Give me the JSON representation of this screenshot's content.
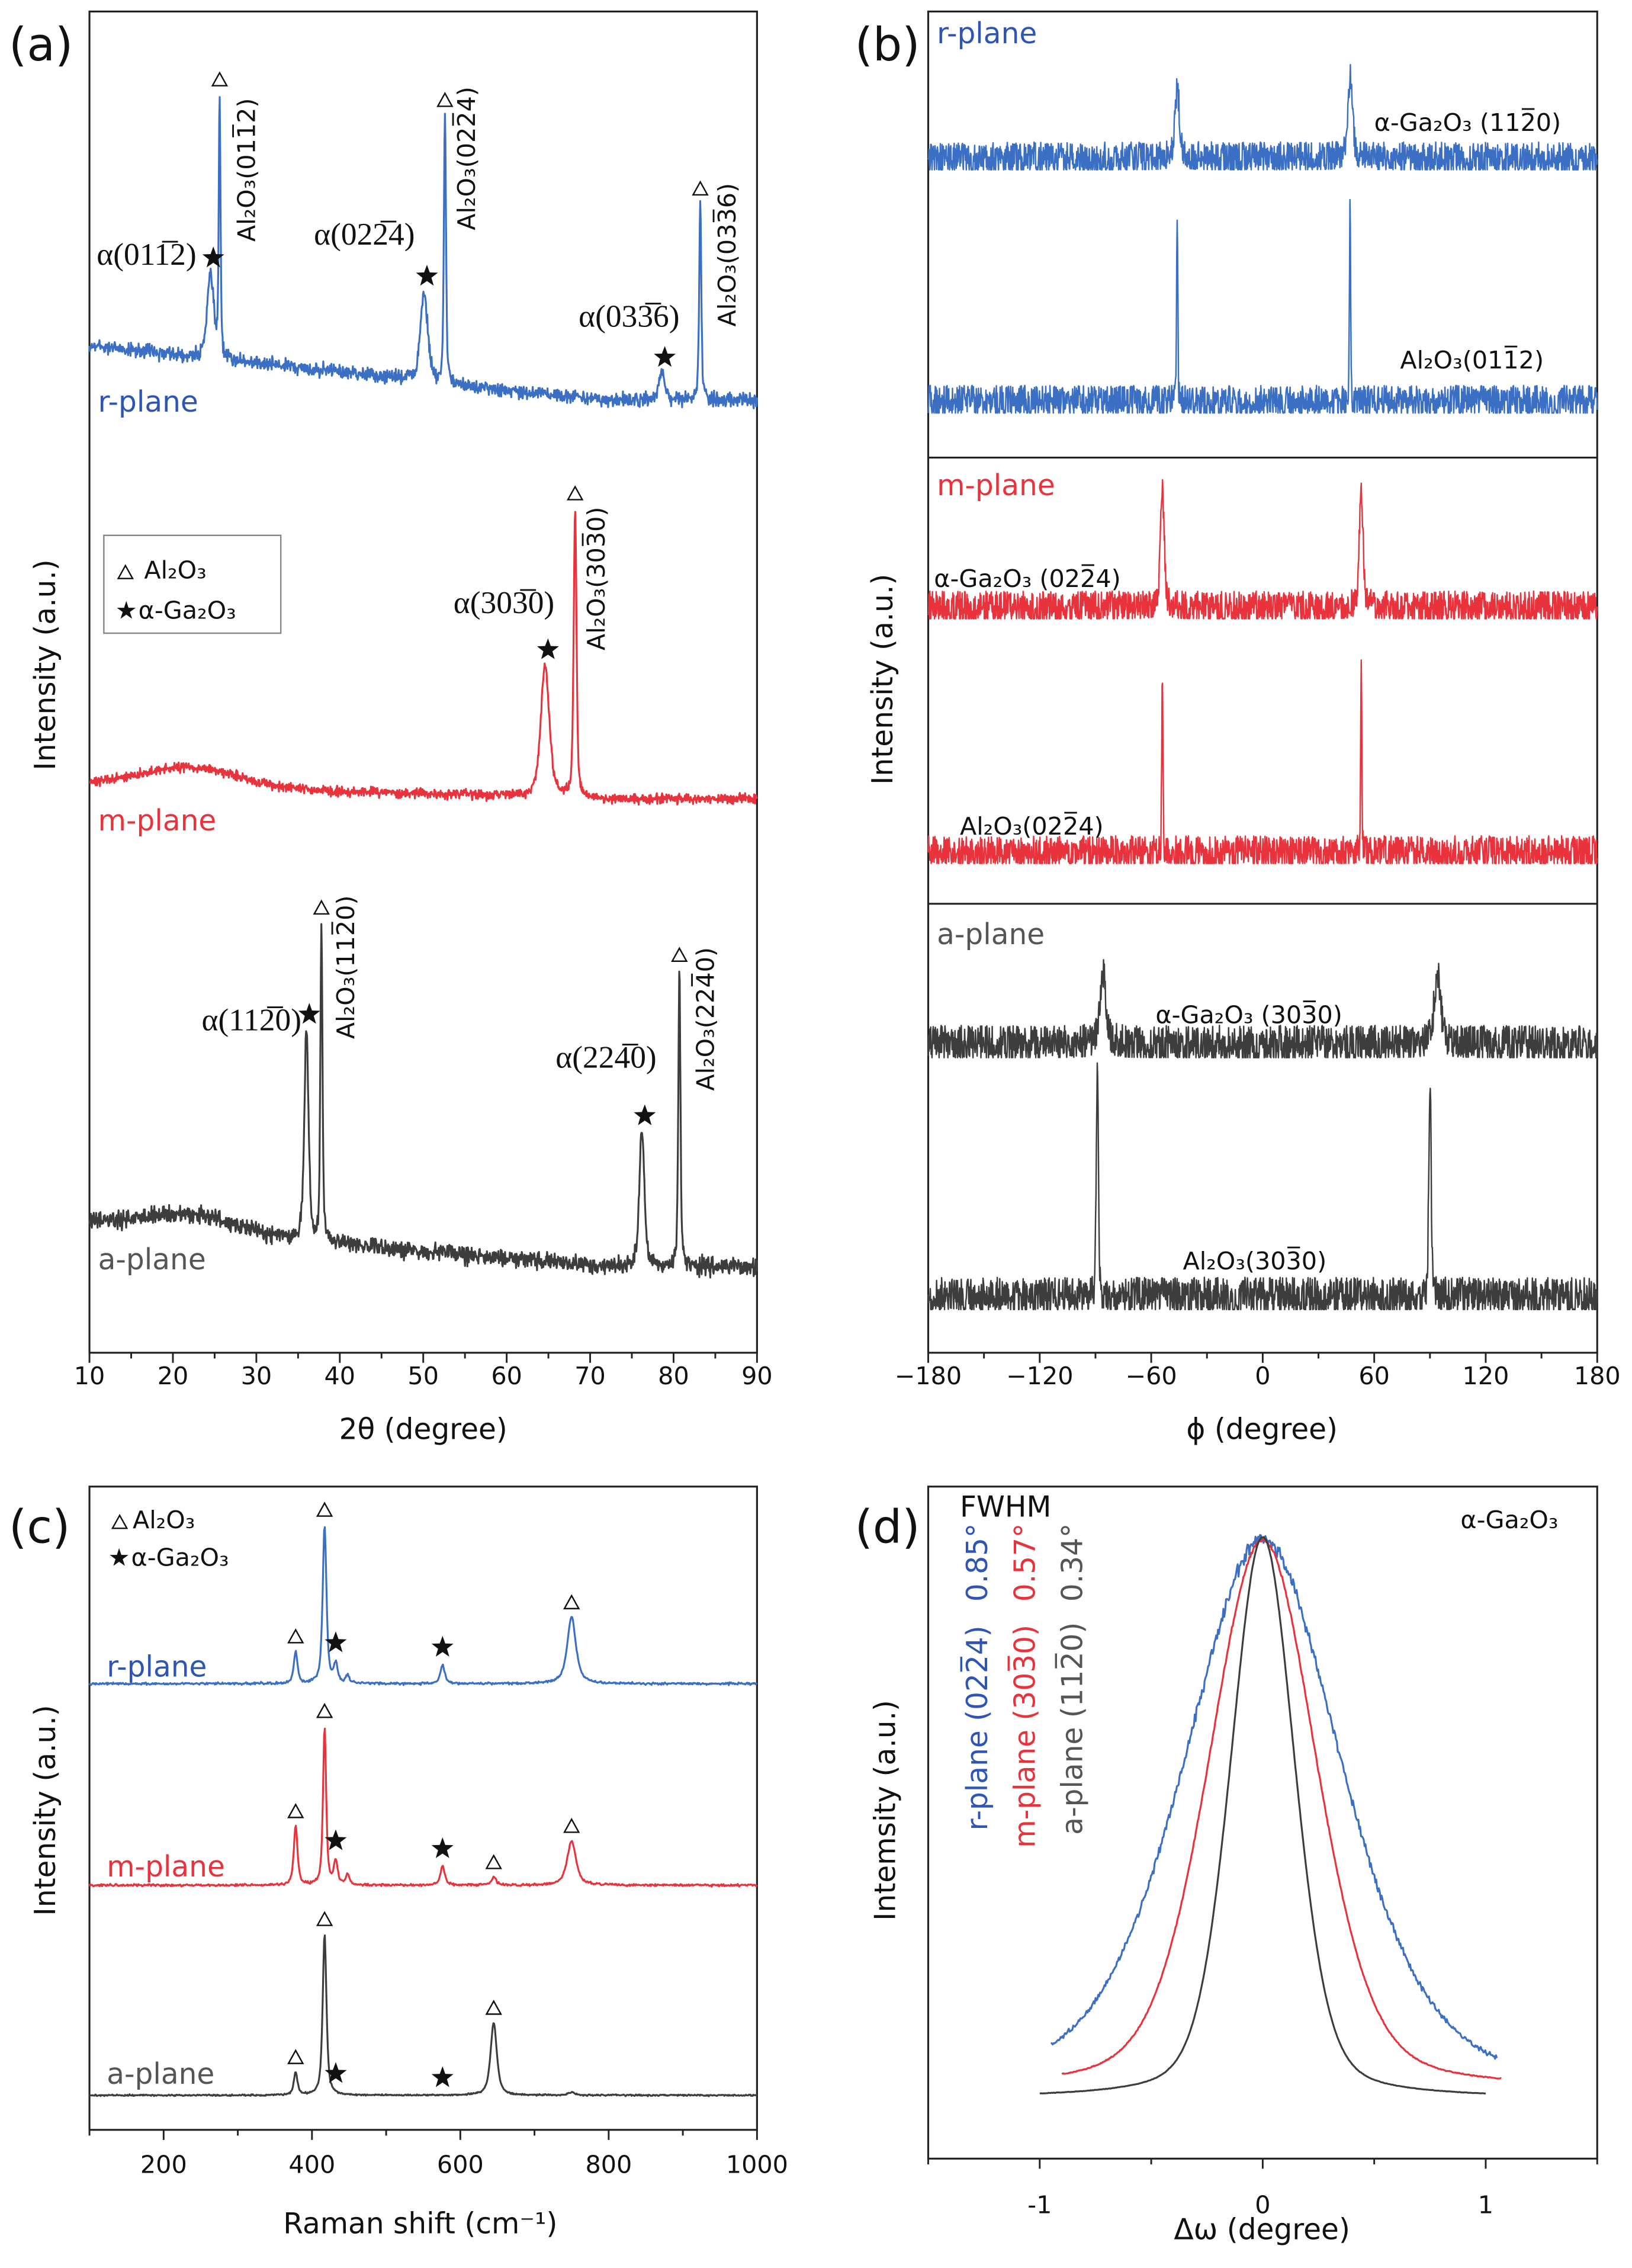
{
  "colors": {
    "r_plane": "#3a6fc4",
    "m_plane": "#e8323c",
    "a_plane": "#3d3d3d"
  },
  "panels": {
    "a": {
      "label": "(a)",
      "xlabel": "2θ (degree)",
      "ylabel": "Intensity (a.u.)",
      "legend": [
        "Al₂O₃",
        "α-Ga₂O₃"
      ],
      "series_labels": [
        "r-plane",
        "m-plane",
        "a-plane"
      ],
      "annotations": {
        "r_a1": "α(011̅2)",
        "r_s1": "Al₂O₃(011̅2)",
        "r_a2": "α(022̅4)",
        "r_s2": "Al₂O₃(022̅4)",
        "r_a3": "α(033̅6)",
        "r_s3": "Al₂O₃(033̅6)",
        "m_a1": "α(303̅0)",
        "m_s1": "Al₂O₃(303̅0)",
        "a_a1": "α(112̅0)",
        "a_s1": "Al₂O₃(112̅0)",
        "a_a2": "α(224̅0)",
        "a_s2": "Al₂O₃(224̅0)"
      }
    },
    "b": {
      "label": "(b)",
      "xlabel": "ϕ (degree)",
      "ylabel": "Intensity (a.u.)",
      "series_labels": [
        "r-plane",
        "m-plane",
        "a-plane"
      ],
      "annotations": {
        "r1": "α-Ga₂O₃ (112̅0)",
        "r2": "Al₂O₃(011̅2)",
        "m1": "α-Ga₂O₃ (022̅4)",
        "m2": "Al₂O₃(022̅4)",
        "a1": "α-Ga₂O₃ (303̅0)",
        "a2": "Al₂O₃(303̅0)"
      }
    },
    "c": {
      "label": "(c)",
      "xlabel": "Raman shift (cm⁻¹)",
      "ylabel": "Intensity (a.u.)",
      "legend": [
        "Al₂O₃",
        "α-Ga₂O₃"
      ],
      "series_labels": [
        "r-plane",
        "m-plane",
        "a-plane"
      ]
    },
    "d": {
      "label": "(d)",
      "xlabel": "Δω (degree)",
      "ylabel": "Intemsity (a.u.)",
      "legend_title": "FWHM",
      "material": "α-Ga₂O₃",
      "series_labels": [
        "r-plane (022̅4)",
        "m-plane (303̅0)",
        "a-plane (112̅0)"
      ],
      "fwhm_labels": [
        "0.85°",
        "0.57°",
        "0.34°"
      ]
    }
  },
  "chart_data": [
    {
      "type": "line",
      "title": "",
      "xlabel": "2θ (degree)",
      "ylabel": "Intensity (a.u.)",
      "xlim": [
        10,
        90
      ],
      "xticks": [
        10,
        20,
        30,
        40,
        50,
        60,
        70,
        80,
        90
      ],
      "yticks": [],
      "series": [
        {
          "name": "r-plane",
          "color": "#3a6fc4",
          "peaks": [
            {
              "x": 24.5,
              "h": 0.3,
              "w": 0.9,
              "phase": "Ga2O3"
            },
            {
              "x": 25.6,
              "h": 0.92,
              "w": 0.25,
              "phase": "Al2O3"
            },
            {
              "x": 50.1,
              "h": 0.32,
              "w": 1.0,
              "phase": "Ga2O3"
            },
            {
              "x": 52.6,
              "h": 0.95,
              "w": 0.3,
              "phase": "Al2O3"
            },
            {
              "x": 78.6,
              "h": 0.1,
              "w": 0.9,
              "phase": "Ga2O3"
            },
            {
              "x": 83.2,
              "h": 0.7,
              "w": 0.3,
              "phase": "Al2O3"
            }
          ]
        },
        {
          "name": "m-plane",
          "color": "#e8323c",
          "peaks": [
            {
              "x": 64.6,
              "h": 0.46,
              "w": 1.2,
              "phase": "Ga2O3"
            },
            {
              "x": 68.2,
              "h": 1.0,
              "w": 0.4,
              "phase": "Al2O3"
            }
          ]
        },
        {
          "name": "a-plane",
          "color": "#3d3d3d",
          "peaks": [
            {
              "x": 36.0,
              "h": 0.7,
              "w": 0.6,
              "phase": "Ga2O3"
            },
            {
              "x": 37.8,
              "h": 1.05,
              "w": 0.3,
              "phase": "Al2O3"
            },
            {
              "x": 76.2,
              "h": 0.45,
              "w": 0.7,
              "phase": "Ga2O3"
            },
            {
              "x": 80.7,
              "h": 0.98,
              "w": 0.3,
              "phase": "Al2O3"
            }
          ]
        }
      ],
      "legend_placement": "left-middle",
      "grid": false
    },
    {
      "type": "line",
      "title": "",
      "xlabel": "ϕ (degree)",
      "ylabel": "Intensity (a.u.)",
      "xlim": [
        -180,
        180
      ],
      "xticks": [
        -180,
        -120,
        -60,
        0,
        60,
        120,
        180
      ],
      "yticks": [],
      "series": [
        {
          "name": "r-plane α-Ga₂O₃ (112̅0)",
          "color": "#3a6fc4",
          "peaks": [
            {
              "x": -46,
              "h": 0.85,
              "w": 3
            },
            {
              "x": 47,
              "h": 1.0,
              "w": 3
            }
          ]
        },
        {
          "name": "r-plane Al₂O₃(011̅2)",
          "color": "#3a6fc4",
          "peaks": [
            {
              "x": -46,
              "h": 1.0,
              "w": 0.8
            },
            {
              "x": 47,
              "h": 1.0,
              "w": 0.8
            }
          ]
        },
        {
          "name": "m-plane α-Ga₂O₃ (022̅4)",
          "color": "#e8323c",
          "peaks": [
            {
              "x": -54,
              "h": 1.0,
              "w": 2.5
            },
            {
              "x": 53,
              "h": 1.0,
              "w": 2.5
            }
          ]
        },
        {
          "name": "m-plane Al₂O₃(022̅4)",
          "color": "#e8323c",
          "peaks": [
            {
              "x": -54,
              "h": 1.0,
              "w": 0.8
            },
            {
              "x": 53,
              "h": 1.0,
              "w": 0.8
            }
          ]
        },
        {
          "name": "a-plane α-Ga₂O₃ (303̅0)",
          "color": "#3d3d3d",
          "peaks": [
            {
              "x": -86,
              "h": 0.85,
              "w": 4
            },
            {
              "x": 94,
              "h": 0.85,
              "w": 4
            }
          ]
        },
        {
          "name": "a-plane Al₂O₃(303̅0)",
          "color": "#3d3d3d",
          "peaks": [
            {
              "x": -89,
              "h": 1.0,
              "w": 1.5
            },
            {
              "x": 90,
              "h": 1.0,
              "w": 1.5
            }
          ]
        }
      ],
      "grid": false
    },
    {
      "type": "line",
      "title": "",
      "xlabel": "Raman shift (cm⁻¹)",
      "ylabel": "Intensity (a.u.)",
      "xlim": [
        100,
        1000
      ],
      "xticks": [
        200,
        400,
        600,
        800,
        1000
      ],
      "yticks": [],
      "series": [
        {
          "name": "r-plane",
          "color": "#3a6fc4",
          "peaks": [
            {
              "x": 378,
              "h": 0.2,
              "w": 6,
              "phase": "Al2O3"
            },
            {
              "x": 417,
              "h": 1.0,
              "w": 6,
              "phase": "Al2O3"
            },
            {
              "x": 432,
              "h": 0.12,
              "w": 6,
              "phase": "Ga2O3"
            },
            {
              "x": 448,
              "h": 0.05,
              "w": 6,
              "phase": null
            },
            {
              "x": 576,
              "h": 0.12,
              "w": 7,
              "phase": "Ga2O3"
            },
            {
              "x": 750,
              "h": 0.42,
              "w": 14,
              "phase": "Al2O3"
            }
          ]
        },
        {
          "name": "m-plane",
          "color": "#e8323c",
          "peaks": [
            {
              "x": 378,
              "h": 0.37,
              "w": 6,
              "phase": "Al2O3"
            },
            {
              "x": 417,
              "h": 1.0,
              "w": 5,
              "phase": "Al2O3"
            },
            {
              "x": 432,
              "h": 0.15,
              "w": 6,
              "phase": "Ga2O3"
            },
            {
              "x": 448,
              "h": 0.06,
              "w": 6,
              "phase": null
            },
            {
              "x": 576,
              "h": 0.12,
              "w": 7,
              "phase": "Ga2O3"
            },
            {
              "x": 645,
              "h": 0.05,
              "w": 8,
              "phase": "Al2O3"
            },
            {
              "x": 750,
              "h": 0.28,
              "w": 14,
              "phase": "Al2O3"
            }
          ]
        },
        {
          "name": "a-plane",
          "color": "#3d3d3d",
          "peaks": [
            {
              "x": 378,
              "h": 0.14,
              "w": 6,
              "phase": "Al2O3"
            },
            {
              "x": 417,
              "h": 1.0,
              "w": 6,
              "phase": "Al2O3"
            },
            {
              "x": 432,
              "h": 0.0,
              "w": 6,
              "phase": "Ga2O3"
            },
            {
              "x": 576,
              "h": 0.0,
              "w": 6,
              "phase": "Ga2O3"
            },
            {
              "x": 645,
              "h": 0.45,
              "w": 10,
              "phase": "Al2O3"
            },
            {
              "x": 750,
              "h": 0.02,
              "w": 10,
              "phase": null
            }
          ]
        }
      ],
      "legend_placement": "top-left",
      "grid": false
    },
    {
      "type": "line",
      "title": "",
      "xlabel": "Δω (degree)",
      "ylabel": "Intemsity (a.u.)",
      "xlim": [
        -1.5,
        1.5
      ],
      "xticks": [
        -1,
        0,
        1
      ],
      "yticks": [],
      "series": [
        {
          "name": "r-plane (022̅4)",
          "fwhm": 0.85,
          "color": "#3a6fc4",
          "x_range": [
            -0.95,
            1.05
          ]
        },
        {
          "name": "m-plane (303̅0)",
          "fwhm": 0.57,
          "color": "#e8323c",
          "x_range": [
            -0.9,
            1.07
          ]
        },
        {
          "name": "a-plane (112̅0)",
          "fwhm": 0.34,
          "color": "#3d3d3d",
          "x_range": [
            -1.0,
            1.0
          ]
        }
      ],
      "legend_placement": "top-left",
      "grid": false
    }
  ]
}
